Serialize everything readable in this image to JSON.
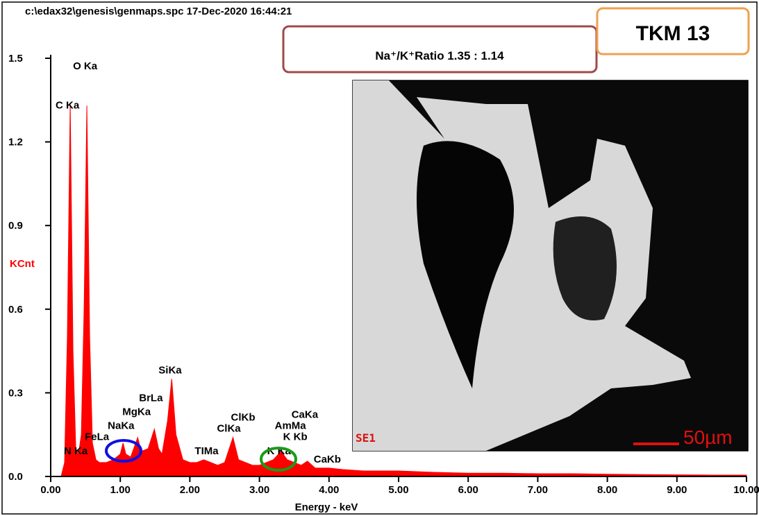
{
  "chart_data": {
    "type": "area",
    "title": "c:\\edax32\\genesis\\genmaps.spc  17-Dec-2020 16:44:21",
    "x_label": "Energy - keV",
    "y_label": "KCnt",
    "color": "#ff0000",
    "xlim": [
      0,
      10
    ],
    "ylim": [
      0,
      1.5
    ],
    "xticks": [
      {
        "value": 0,
        "label": "0.00"
      },
      {
        "value": 1,
        "label": "1.00"
      },
      {
        "value": 2,
        "label": "2.00"
      },
      {
        "value": 3,
        "label": "3.00"
      },
      {
        "value": 4,
        "label": "4.00"
      },
      {
        "value": 5,
        "label": "5.00"
      },
      {
        "value": 6,
        "label": "6.00"
      },
      {
        "value": 7,
        "label": "7.00"
      },
      {
        "value": 8,
        "label": "8.00"
      },
      {
        "value": 9,
        "label": "9.00"
      },
      {
        "value": 10,
        "label": "10.00"
      }
    ],
    "yticks": [
      {
        "value": 0,
        "label": "0.0"
      },
      0.3,
      0.6,
      0.9,
      1.2,
      1.5
    ],
    "x": [
      0.1,
      0.15,
      0.2,
      0.24,
      0.28,
      0.32,
      0.36,
      0.4,
      0.44,
      0.48,
      0.52,
      0.56,
      0.6,
      0.65,
      0.7,
      0.8,
      0.9,
      1.0,
      1.04,
      1.08,
      1.15,
      1.25,
      1.3,
      1.4,
      1.49,
      1.55,
      1.6,
      1.68,
      1.74,
      1.8,
      1.9,
      2.0,
      2.1,
      2.2,
      2.3,
      2.4,
      2.5,
      2.62,
      2.7,
      2.8,
      2.9,
      3.0,
      3.1,
      3.2,
      3.31,
      3.4,
      3.5,
      3.6,
      3.69,
      3.8,
      4.0,
      4.2,
      4.5,
      5.0,
      5.5,
      6.0,
      6.5,
      7.0,
      7.5,
      8.0,
      8.5,
      9.0,
      9.5,
      10.0
    ],
    "values": [
      0,
      0,
      0.05,
      0.5,
      1.34,
      0.45,
      0.1,
      0.08,
      0.15,
      0.6,
      1.33,
      0.5,
      0.12,
      0.06,
      0.05,
      0.05,
      0.06,
      0.08,
      0.12,
      0.08,
      0.07,
      0.14,
      0.09,
      0.1,
      0.17,
      0.1,
      0.08,
      0.2,
      0.35,
      0.15,
      0.06,
      0.05,
      0.05,
      0.06,
      0.05,
      0.04,
      0.05,
      0.14,
      0.06,
      0.05,
      0.04,
      0.04,
      0.05,
      0.06,
      0.09,
      0.06,
      0.05,
      0.04,
      0.055,
      0.03,
      0.03,
      0.025,
      0.02,
      0.02,
      0.015,
      0.012,
      0.012,
      0.01,
      0.01,
      0.008,
      0.007,
      0.006,
      0.005,
      0.005
    ],
    "annotations": [
      {
        "text": "O Ka",
        "x": 0.32,
        "y": 1.46
      },
      {
        "text": "C Ka",
        "x": 0.07,
        "y": 1.32
      },
      {
        "text": "SiKa",
        "x": 1.55,
        "y": 0.37
      },
      {
        "text": "BrLa",
        "x": 1.27,
        "y": 0.27
      },
      {
        "text": "MgKa",
        "x": 1.03,
        "y": 0.22
      },
      {
        "text": "NaKa",
        "x": 0.82,
        "y": 0.17
      },
      {
        "text": "FeLa",
        "x": 0.49,
        "y": 0.13
      },
      {
        "text": "N Ka",
        "x": 0.19,
        "y": 0.08
      },
      {
        "text": "TIMa",
        "x": 2.07,
        "y": 0.08
      },
      {
        "text": "ClKb",
        "x": 2.59,
        "y": 0.2
      },
      {
        "text": "ClKa",
        "x": 2.39,
        "y": 0.16
      },
      {
        "text": "CaKa",
        "x": 3.46,
        "y": 0.21
      },
      {
        "text": "AmMa",
        "x": 3.22,
        "y": 0.17
      },
      {
        "text": "K Kb",
        "x": 3.34,
        "y": 0.13
      },
      {
        "text": "K Ka",
        "x": 3.11,
        "y": 0.08
      },
      {
        "text": "CaKb",
        "x": 3.78,
        "y": 0.05
      }
    ]
  },
  "ratio_box": "Na⁺/K⁺Ratio 1.35 : 1.14",
  "sample_box": "TKM 13",
  "inset": {
    "detector": "SE1",
    "scale": "50µm"
  }
}
